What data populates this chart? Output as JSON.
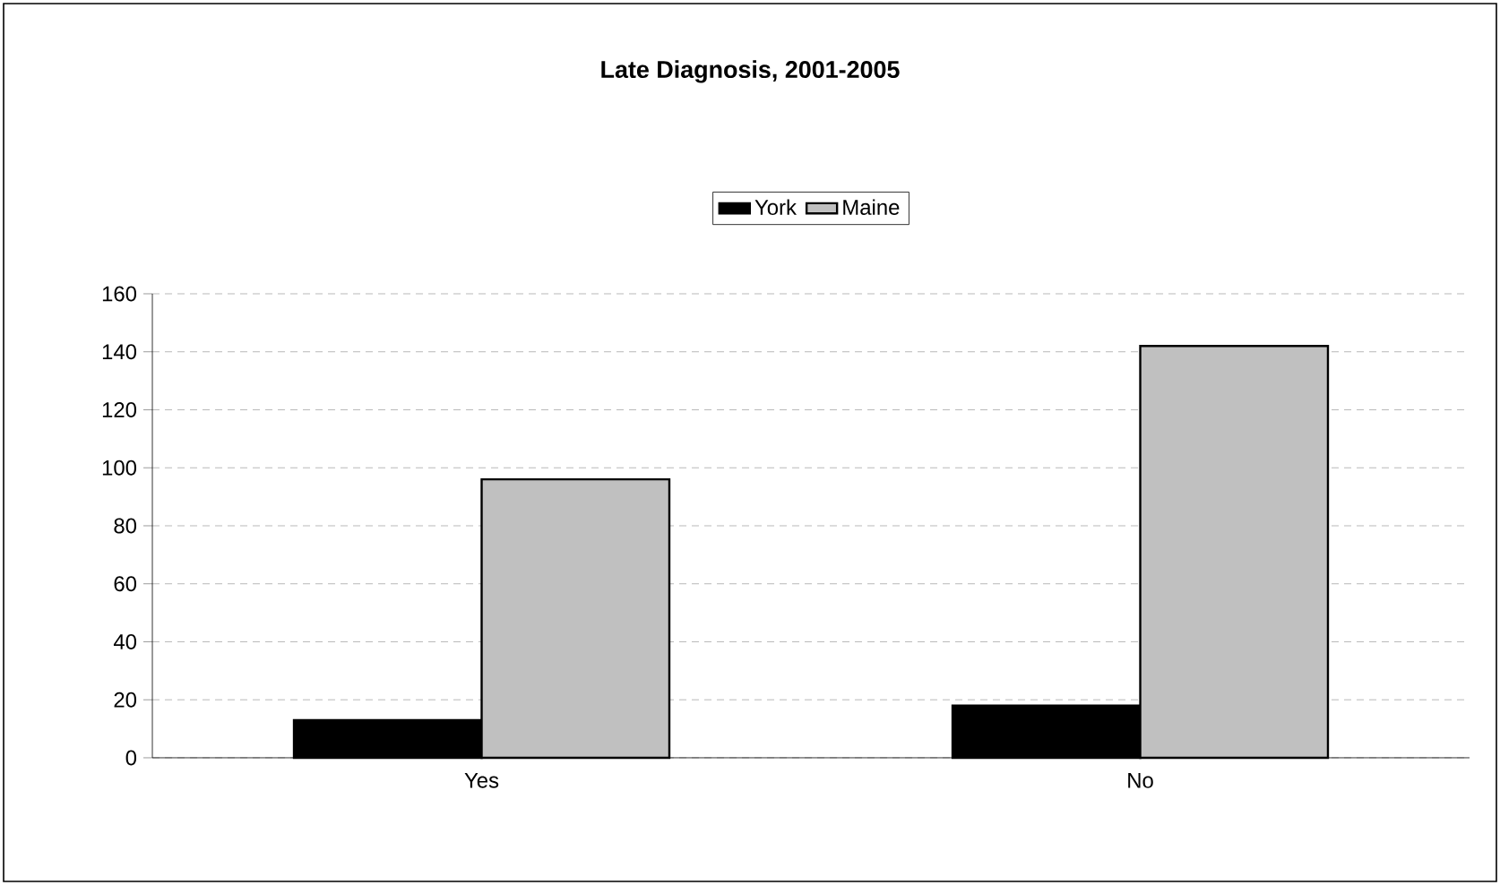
{
  "chart_data": {
    "type": "bar",
    "title": "Late Diagnosis, 2001-2005",
    "categories": [
      "Yes",
      "No"
    ],
    "series": [
      {
        "name": "York",
        "color": "#000000",
        "values": [
          13,
          18
        ]
      },
      {
        "name": "Maine",
        "color": "#c0c0c0",
        "values": [
          96,
          142
        ]
      }
    ],
    "ylim": [
      0,
      160
    ],
    "yticks": [
      0,
      20,
      40,
      60,
      80,
      100,
      120,
      140,
      160
    ],
    "grid": "y",
    "legend": "top"
  }
}
